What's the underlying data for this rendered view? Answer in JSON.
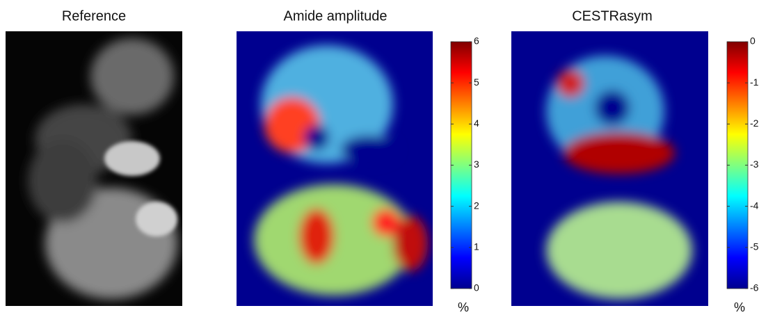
{
  "panels": [
    {
      "title": "Reference"
    },
    {
      "title": "Amide amplitude",
      "colorbar": {
        "lim": [
          0,
          6
        ],
        "ticks": [
          0,
          1,
          2,
          3,
          4,
          5,
          6
        ],
        "unit": "%"
      }
    },
    {
      "title": "CESTRasym",
      "colorbar": {
        "lim": [
          -6,
          0
        ],
        "ticks": [
          -6,
          -5,
          -4,
          -3,
          -2,
          -1,
          0
        ],
        "unit": "%"
      }
    }
  ]
}
